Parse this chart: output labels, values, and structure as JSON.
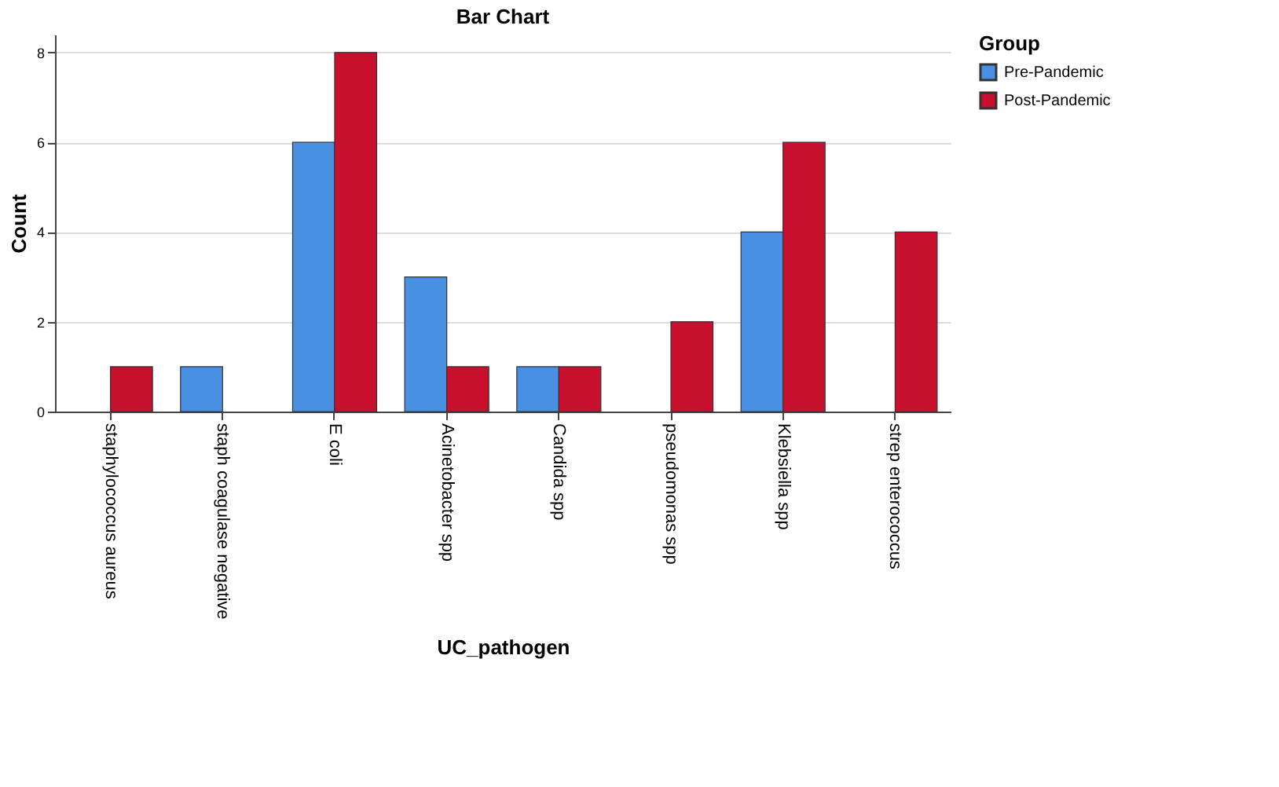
{
  "chart_data": {
    "type": "bar",
    "title": "Bar Chart",
    "xlabel": "UC_pathogen",
    "ylabel": "Count",
    "legend_title": "Group",
    "categories": [
      "staphylococcus aureus",
      "staph coagulase negative",
      "E coli",
      "Acinetobacter spp",
      "Candida spp",
      "pseudomonas spp",
      "Klebsiella spp",
      "strep enterococcus"
    ],
    "series": [
      {
        "name": "Pre-Pandemic",
        "color": "#4a90e2",
        "values": [
          null,
          1,
          6,
          3,
          1,
          null,
          4,
          null
        ]
      },
      {
        "name": "Post-Pandemic",
        "color": "#c8102e",
        "values": [
          1,
          null,
          8,
          1,
          1,
          2,
          6,
          4
        ]
      }
    ],
    "ylim": [
      0,
      8.4
    ],
    "yticks": [
      0,
      2,
      4,
      6,
      8
    ],
    "grid": "y",
    "legend": "top right"
  }
}
